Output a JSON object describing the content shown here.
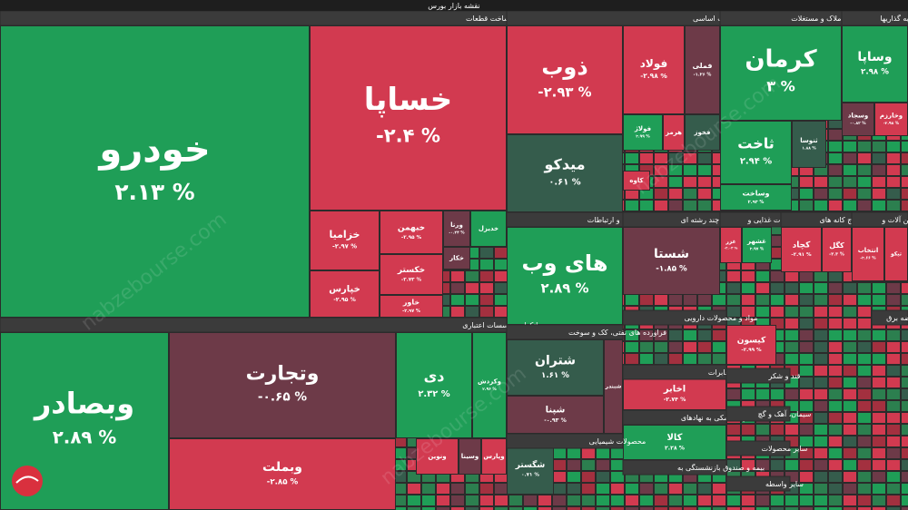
{
  "title": "نقشه بازار بورس",
  "watermark": "nabzebourse.com",
  "sectors": [
    {
      "name": "خودرو و ساخت قطعات"
    },
    {
      "name": "بانکها و موسسات اعتباری"
    },
    {
      "name": "فلزات اساسی"
    },
    {
      "name": "انبوه سازی، املاک و مستغلات"
    },
    {
      "name": "سرمایه گذاریها"
    },
    {
      "name": "اطلاعات و ارتباطات"
    },
    {
      "name": "شرکتهای چند رشته ای"
    },
    {
      "name": "محصولات غذایی و"
    },
    {
      "name": "استخراج کانه های"
    },
    {
      "name": "ماشین آلات و"
    },
    {
      "name": "فراورده های نفتی، کک و سوخت"
    },
    {
      "name": "مواد و محصولات دارویی"
    },
    {
      "name": "مخابرات"
    },
    {
      "name": "فعالیتهای کمکی به نهادهای"
    },
    {
      "name": "بیمه و صندوق بازنشستگی به"
    },
    {
      "name": "قند و شکر"
    },
    {
      "name": "سیمان، آهک و گچ"
    },
    {
      "name": "سایر محصولات"
    },
    {
      "name": "سایر واسطه"
    },
    {
      "name": "محصولات شیمیایی"
    },
    {
      "name": "عرضه برق"
    }
  ],
  "tiles": [
    {
      "name": "خودرو",
      "change": "۲.۱۳ %"
    },
    {
      "name": "خساپا",
      "change": "-۲.۴ %"
    },
    {
      "name": "خزامیا",
      "change": "-۲.۹۷ %"
    },
    {
      "name": "خپارس",
      "change": "-۲.۹۵ %"
    },
    {
      "name": "خبهمن",
      "change": "-۲.۹۵ %"
    },
    {
      "name": "خکستر",
      "change": "-۲.۷۳ %"
    },
    {
      "name": "خاور",
      "change": "-۲.۹۷ %"
    },
    {
      "name": "ورنا",
      "change": "-۰.۳۴ %"
    },
    {
      "name": "وبصادر",
      "change": "۲.۸۹ %"
    },
    {
      "name": "وتجارت",
      "change": "-۰.۶۵ %"
    },
    {
      "name": "وبملت",
      "change": "-۲.۸۵ %"
    },
    {
      "name": "دی",
      "change": "۲.۳۲ %"
    },
    {
      "name": "وکردش",
      "change": "۲.۹۶ %"
    },
    {
      "name": "ذوب",
      "change": "-۲.۹۳ %"
    },
    {
      "name": "میدکو",
      "change": "۰.۶۱ %"
    },
    {
      "name": "فولاد",
      "change": "-۲.۹۸ %"
    },
    {
      "name": "فملی",
      "change": "-۱.۲۶ %"
    },
    {
      "name": "فولاژ",
      "change": "۲.۹۹ %"
    },
    {
      "name": "کرمان",
      "change": "۳ %"
    },
    {
      "name": "ثاخت",
      "change": "۲.۹۴ %"
    },
    {
      "name": "ثنوسا",
      "change": "۱.۸۸ %"
    },
    {
      "name": "وساخت",
      "change": "۲.۹۳ %"
    },
    {
      "name": "وساپا",
      "change": "۲.۹۸ %"
    },
    {
      "name": "وسجاد",
      "change": "-۰.۸۳ %"
    },
    {
      "name": "وخارزم",
      "change": "-۲.۹۸ %"
    },
    {
      "name": "های وب",
      "change": "۲.۸۹ %"
    },
    {
      "name": "شستا",
      "change": "-۱.۸۵ %"
    },
    {
      "name": "غزر",
      "change": "-۲.۰۳ %"
    },
    {
      "name": "غشهر",
      "change": "۲.۹۷ %"
    },
    {
      "name": "کچاد",
      "change": "-۲.۹۱ %"
    },
    {
      "name": "کگل",
      "change": "-۲.۳ %"
    },
    {
      "name": "انتخاب",
      "change": "-۲.۶۶ %"
    },
    {
      "name": "شتران",
      "change": "۱.۶۱ %"
    },
    {
      "name": "شپنا",
      "change": "-۰.۹۳ %"
    },
    {
      "name": "اخابر",
      "change": "-۲.۷۴ %"
    },
    {
      "name": "کالا",
      "change": "۲.۲۸ %"
    },
    {
      "name": "کیسون",
      "change": "-۲.۹۹ %"
    },
    {
      "name": "شگستر",
      "change": "۰.۷۱ %"
    },
    {
      "name": "خدیزل"
    },
    {
      "name": "خکار"
    },
    {
      "name": "وسینا"
    },
    {
      "name": "وپارس"
    },
    {
      "name": "فخوز"
    },
    {
      "name": "هرمز"
    },
    {
      "name": "کاوه"
    },
    {
      "name": "ونوین"
    },
    {
      "name": "شبندر"
    },
    {
      "name": "تیکو"
    }
  ]
}
